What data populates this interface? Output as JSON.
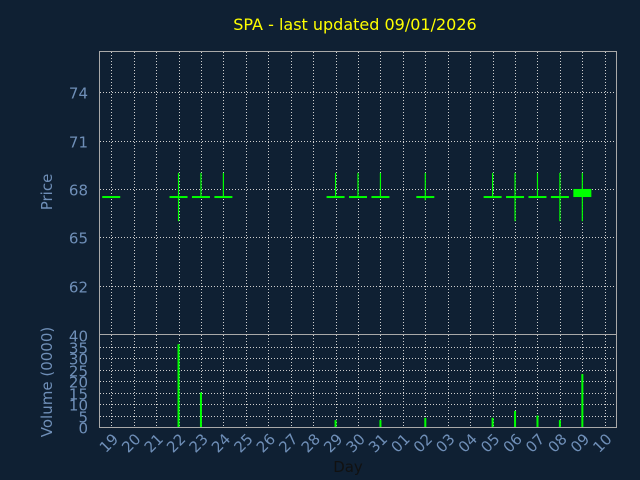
{
  "chart_data": [
    {
      "type": "candlestick",
      "title": "SPA - last updated 09/01/2026",
      "ylabel": "Price",
      "ylim": [
        59,
        76.5
      ],
      "yticks": [
        62,
        65,
        68,
        71,
        74
      ],
      "grid": true,
      "color": "#00ff00",
      "candles": [
        {
          "x": "19",
          "open": 67.5,
          "high": 67.5,
          "low": 67.5,
          "close": 67.5
        },
        {
          "x": "22",
          "open": 67.5,
          "high": 69.0,
          "low": 66.0,
          "close": 67.5
        },
        {
          "x": "23",
          "open": 67.5,
          "high": 69.0,
          "low": 67.5,
          "close": 67.5
        },
        {
          "x": "24",
          "open": 67.5,
          "high": 69.0,
          "low": 67.5,
          "close": 67.5
        },
        {
          "x": "29",
          "open": 67.5,
          "high": 69.0,
          "low": 67.5,
          "close": 67.5
        },
        {
          "x": "30",
          "open": 67.5,
          "high": 69.0,
          "low": 67.5,
          "close": 67.5
        },
        {
          "x": "31",
          "open": 67.5,
          "high": 69.0,
          "low": 67.5,
          "close": 67.5
        },
        {
          "x": "02",
          "open": 67.5,
          "high": 69.0,
          "low": 67.3,
          "close": 67.5
        },
        {
          "x": "05",
          "open": 67.5,
          "high": 69.0,
          "low": 67.5,
          "close": 67.5
        },
        {
          "x": "06",
          "open": 67.5,
          "high": 69.0,
          "low": 66.0,
          "close": 67.5
        },
        {
          "x": "07",
          "open": 67.5,
          "high": 69.0,
          "low": 67.5,
          "close": 67.5
        },
        {
          "x": "08",
          "open": 67.5,
          "high": 69.0,
          "low": 66.0,
          "close": 67.5
        },
        {
          "x": "09",
          "open": 68.0,
          "high": 69.0,
          "low": 66.0,
          "close": 67.5
        }
      ]
    },
    {
      "type": "bar",
      "ylabel": "Volume (0000)",
      "xlabel": "Day",
      "ylim": [
        0,
        40
      ],
      "yticks": [
        0,
        5,
        10,
        15,
        20,
        25,
        30,
        35,
        40
      ],
      "grid": true,
      "color": "#00ff00",
      "categories": [
        "19",
        "20",
        "21",
        "22",
        "23",
        "24",
        "25",
        "26",
        "27",
        "28",
        "29",
        "30",
        "31",
        "01",
        "02",
        "03",
        "04",
        "05",
        "06",
        "07",
        "08",
        "09",
        "10"
      ],
      "values": [
        0,
        0,
        0,
        36,
        15,
        0,
        0,
        0,
        0,
        0,
        3,
        0,
        3,
        0,
        4,
        0,
        0,
        4,
        7,
        5,
        3,
        23,
        0
      ]
    }
  ]
}
